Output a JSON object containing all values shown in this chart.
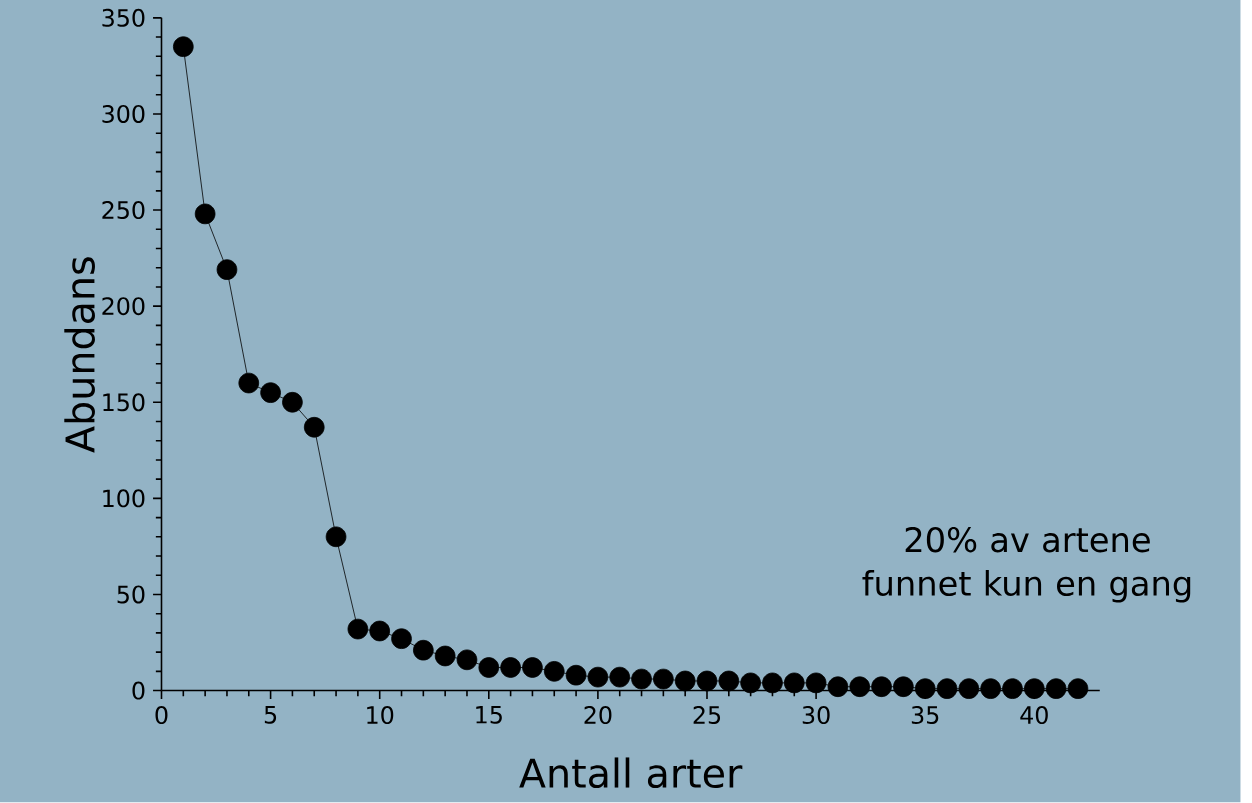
{
  "chart_data": {
    "type": "line",
    "xlabel": "Antall arter",
    "ylabel": "Abundans",
    "x": [
      1,
      2,
      3,
      4,
      5,
      6,
      7,
      8,
      9,
      10,
      11,
      12,
      13,
      14,
      15,
      16,
      17,
      18,
      19,
      20,
      21,
      22,
      23,
      24,
      25,
      26,
      27,
      28,
      29,
      30,
      31,
      32,
      33,
      34,
      35,
      36,
      37,
      38,
      39,
      40,
      41,
      42
    ],
    "series": [
      {
        "color": "#000000",
        "values": [
          335,
          248,
          219,
          160,
          155,
          150,
          137,
          80,
          32,
          31,
          27,
          21,
          18,
          16,
          12,
          12,
          12,
          10,
          8,
          7,
          7,
          6,
          6,
          5,
          5,
          5,
          4,
          4,
          4,
          4,
          2,
          2,
          2,
          2,
          1,
          1,
          1,
          1,
          1,
          1,
          1,
          1
        ]
      }
    ],
    "xlim": [
      0,
      43
    ],
    "ylim": [
      0,
      350
    ],
    "xticks": [
      0,
      5,
      10,
      15,
      20,
      25,
      30,
      35,
      40
    ],
    "yticks": [
      0,
      50,
      100,
      150,
      200,
      250,
      300,
      350
    ],
    "marker": "circle",
    "line_style": "solid",
    "grid": false,
    "annotations": [
      "20% av artene funnet kun en gang"
    ]
  }
}
